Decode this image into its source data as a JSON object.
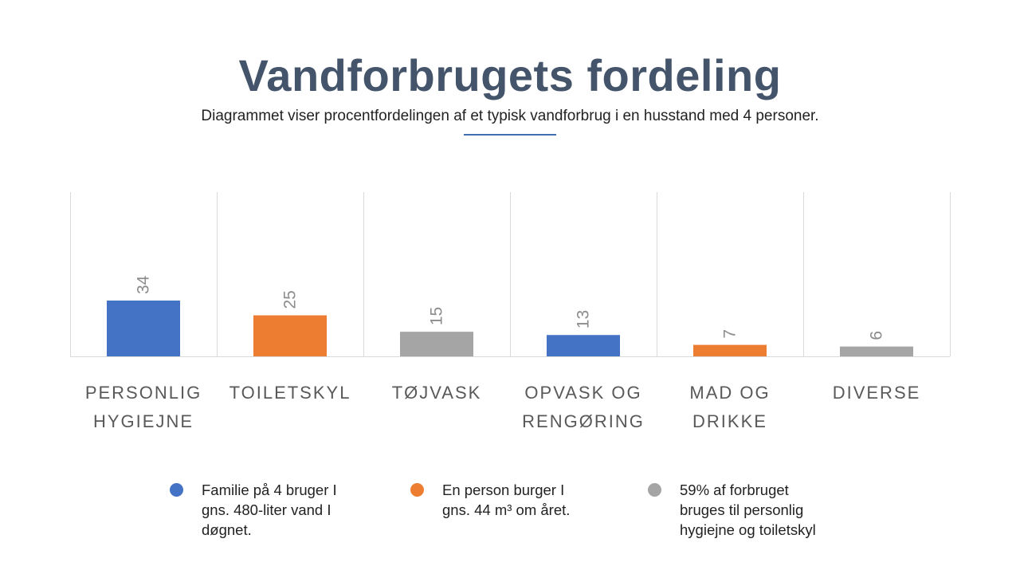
{
  "slide": {
    "title": "Vandforbrugets fordeling",
    "subtitle": "Diagrammet viser procentfordelingen af et typisk vandforbrug i en husstand med 4 personer."
  },
  "colors": {
    "blue": "#4472C4",
    "orange": "#ED7D31",
    "gray": "#A5A5A5",
    "title": "#44546A"
  },
  "chart_data": {
    "type": "bar",
    "categories": [
      [
        "PERSONLIG",
        "HYGIEJNE"
      ],
      [
        "TOILETSKYL"
      ],
      [
        "TØJVASK"
      ],
      [
        "OPVASK OG",
        "RENGØRING"
      ],
      [
        "MAD OG",
        "DRIKKE"
      ],
      [
        "DIVERSE"
      ]
    ],
    "values": [
      34,
      25,
      15,
      13,
      7,
      6
    ],
    "bar_colors": [
      "#4472C4",
      "#ED7D31",
      "#A5A5A5",
      "#4472C4",
      "#ED7D31",
      "#A5A5A5"
    ],
    "ylim": [
      0,
      100
    ],
    "grid": "vertical",
    "data_labels": true
  },
  "legend": [
    {
      "color": "#4472C4",
      "lines": [
        "Familie på 4 bruger I",
        "gns. 480-liter vand I",
        "døgnet."
      ]
    },
    {
      "color": "#ED7D31",
      "lines": [
        "En person burger I",
        "gns. 44 m³ om året."
      ]
    },
    {
      "color": "#A5A5A5",
      "lines": [
        "59% af forbruget",
        "bruges til personlig",
        "hygiejne og toiletskyl"
      ]
    }
  ]
}
